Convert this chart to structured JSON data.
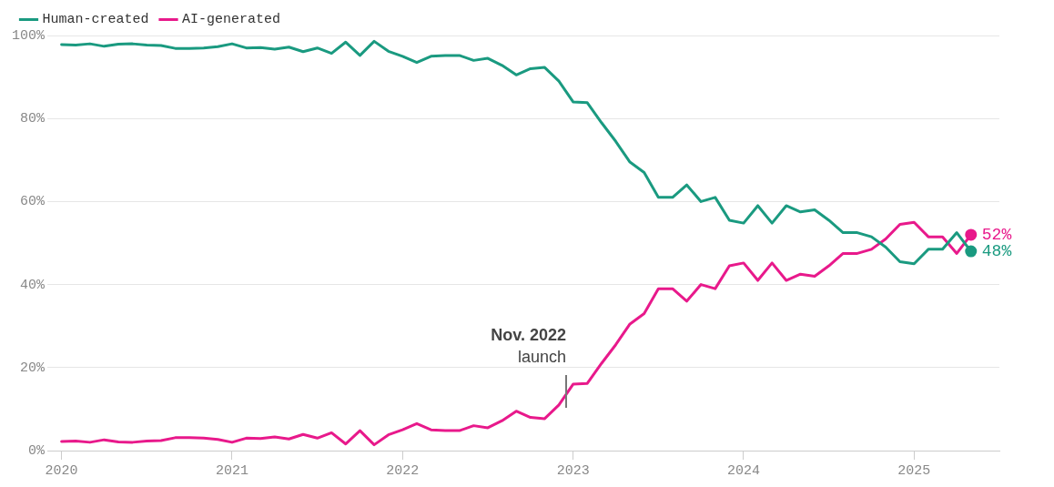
{
  "chart_data": {
    "type": "line",
    "x": [
      "2020-01",
      "2020-02",
      "2020-03",
      "2020-04",
      "2020-05",
      "2020-06",
      "2020-07",
      "2020-08",
      "2020-09",
      "2020-10",
      "2020-11",
      "2020-12",
      "2021-01",
      "2021-02",
      "2021-03",
      "2021-04",
      "2021-05",
      "2021-06",
      "2021-07",
      "2021-08",
      "2021-09",
      "2021-10",
      "2021-11",
      "2021-12",
      "2022-01",
      "2022-02",
      "2022-03",
      "2022-04",
      "2022-05",
      "2022-06",
      "2022-07",
      "2022-08",
      "2022-09",
      "2022-10",
      "2022-11",
      "2022-12",
      "2023-01",
      "2023-02",
      "2023-03",
      "2023-04",
      "2023-05",
      "2023-06",
      "2023-07",
      "2023-08",
      "2023-09",
      "2023-10",
      "2023-11",
      "2023-12",
      "2024-01",
      "2024-02",
      "2024-03",
      "2024-04",
      "2024-05",
      "2024-06",
      "2024-07",
      "2024-08",
      "2024-09",
      "2024-10",
      "2024-11",
      "2024-12",
      "2025-01",
      "2025-02",
      "2025-03",
      "2025-04",
      "2025-05"
    ],
    "series": [
      {
        "name": "Human-created",
        "color": "#1a9a80",
        "values": [
          97.8,
          97.7,
          98,
          97.4,
          97.9,
          98,
          97.7,
          97.6,
          96.9,
          96.9,
          97,
          97.3,
          98,
          97,
          97.1,
          96.7,
          97.2,
          96.1,
          97,
          95.7,
          98.4,
          95.2,
          98.6,
          96.2,
          95,
          93.5,
          95,
          95.2,
          95.2,
          94,
          94.5,
          92.8,
          90.5,
          92,
          92.3,
          89,
          84,
          83.8,
          79,
          74.5,
          69.5,
          67,
          61,
          61,
          64,
          60,
          61,
          55.5,
          54.8,
          59,
          54.8,
          59,
          57.5,
          58,
          55.5,
          52.5,
          52.5,
          51.5,
          49,
          45.5,
          45,
          48.5,
          48.5,
          52.5,
          48
        ],
        "value_labels": [
          null,
          null,
          null,
          null,
          null,
          null,
          null,
          null,
          null,
          null,
          null,
          null,
          null,
          null,
          null,
          null,
          null,
          null,
          null,
          null,
          null,
          null,
          null,
          null,
          null,
          null,
          null,
          null,
          null,
          null,
          null,
          null,
          null,
          null,
          null,
          null,
          null,
          null,
          null,
          null,
          null,
          null,
          null,
          null,
          null,
          null,
          null,
          null,
          null,
          null,
          null,
          null,
          null,
          null,
          null,
          null,
          null,
          null,
          null,
          null,
          null,
          null,
          null,
          null,
          "48%"
        ]
      },
      {
        "name": "AI-generated",
        "color": "#e8198b",
        "values": [
          2.2,
          2.3,
          2,
          2.6,
          2.1,
          2,
          2.3,
          2.4,
          3.1,
          3.1,
          3,
          2.7,
          2,
          3,
          2.9,
          3.3,
          2.8,
          3.9,
          3,
          4.3,
          1.6,
          4.8,
          1.4,
          3.8,
          5,
          6.5,
          5,
          4.8,
          4.8,
          6,
          5.5,
          7.2,
          9.5,
          8,
          7.7,
          11,
          16,
          16.2,
          21,
          25.5,
          30.5,
          33,
          39,
          39,
          36,
          40,
          39,
          44.5,
          45.2,
          41,
          45.2,
          41,
          42.5,
          42,
          44.5,
          47.5,
          47.5,
          48.5,
          51,
          54.5,
          55,
          51.5,
          51.5,
          47.5,
          52
        ],
        "value_labels": [
          null,
          null,
          null,
          null,
          null,
          null,
          null,
          null,
          null,
          null,
          null,
          null,
          null,
          null,
          null,
          null,
          null,
          null,
          null,
          null,
          null,
          null,
          null,
          null,
          null,
          null,
          null,
          null,
          null,
          null,
          null,
          null,
          null,
          null,
          null,
          null,
          null,
          null,
          null,
          null,
          null,
          null,
          null,
          null,
          null,
          null,
          null,
          null,
          null,
          null,
          null,
          null,
          null,
          null,
          null,
          null,
          null,
          null,
          null,
          null,
          null,
          null,
          null,
          null,
          "52%"
        ]
      }
    ],
    "xlim": [
      "2019-12",
      "2025-07"
    ],
    "xticks": [
      "2020",
      "2021",
      "2022",
      "2023",
      "2024",
      "2025"
    ],
    "ylim": [
      0,
      100
    ],
    "yticks": [
      {
        "value": 0,
        "label": "0%"
      },
      {
        "value": 20,
        "label": "20%"
      },
      {
        "value": 40,
        "label": "40%"
      },
      {
        "value": 60,
        "label": "60%"
      },
      {
        "value": 80,
        "label": "80%"
      },
      {
        "value": 100,
        "label": "100%"
      }
    ],
    "grid": "y",
    "legend": "top left",
    "annotations": [
      "Nov. 2022",
      "launch"
    ]
  }
}
